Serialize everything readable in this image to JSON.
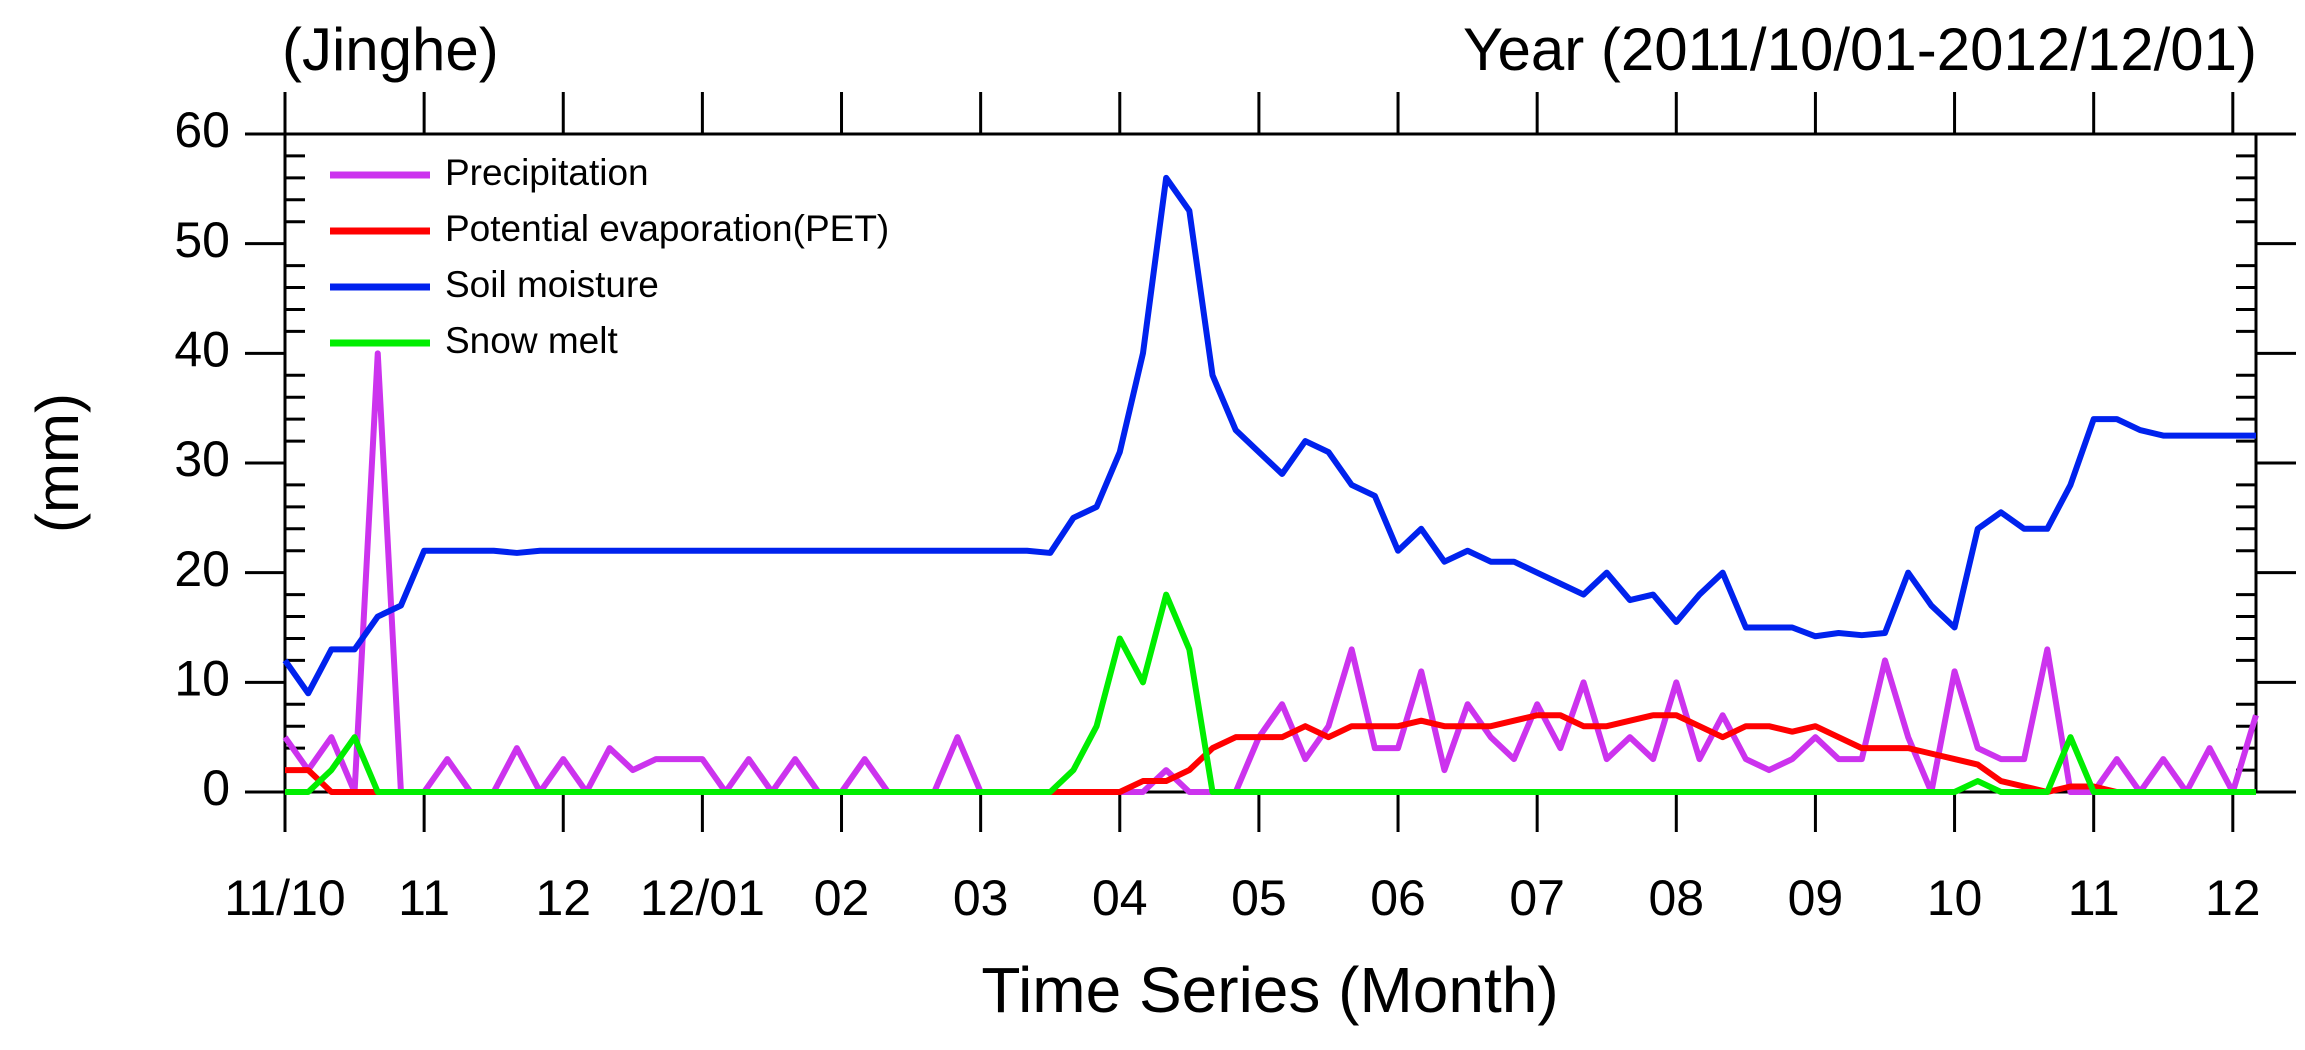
{
  "chart_data": {
    "type": "line",
    "title_left": "(Jinghe)",
    "title_right": "Year (2011/10/01-2012/12/01)",
    "xlabel": "Time Series (Month)",
    "ylabel": "(mm)",
    "categories": [
      "11/10",
      null,
      null,
      null,
      null,
      null,
      "11",
      null,
      null,
      null,
      null,
      null,
      "12",
      null,
      null,
      null,
      null,
      null,
      "12/01",
      null,
      null,
      null,
      null,
      null,
      "02",
      null,
      null,
      null,
      null,
      null,
      "03",
      null,
      null,
      null,
      null,
      null,
      "04",
      null,
      null,
      null,
      null,
      null,
      "05",
      null,
      null,
      null,
      null,
      null,
      "06",
      null,
      null,
      null,
      null,
      null,
      "07",
      null,
      null,
      null,
      null,
      null,
      "08",
      null,
      null,
      null,
      null,
      null,
      "09",
      null,
      null,
      null,
      null,
      null,
      "10",
      null,
      null,
      null,
      null,
      null,
      "11",
      null,
      null,
      null,
      null,
      null,
      "12",
      null
    ],
    "series": [
      {
        "name": "Precipitation",
        "color": "#cc33ee",
        "values": [
          5,
          2,
          5,
          0,
          40,
          0,
          0,
          3,
          0,
          0,
          4,
          0,
          3,
          0,
          4,
          2,
          3,
          3,
          3,
          0,
          3,
          0,
          3,
          0,
          0,
          3,
          0,
          0,
          0,
          5,
          0,
          0,
          0,
          0,
          0,
          0,
          0,
          0,
          2,
          0,
          0,
          0,
          5,
          8,
          3,
          6,
          13,
          4,
          4,
          11,
          2,
          8,
          5,
          3,
          8,
          4,
          10,
          3,
          5,
          3,
          10,
          3,
          7,
          3,
          2,
          3,
          5,
          3,
          3,
          12,
          5,
          0,
          11,
          4,
          3,
          3,
          13,
          0,
          0,
          3,
          0,
          3,
          0,
          4,
          0,
          7
        ]
      },
      {
        "name": "Potential evaporation(PET)",
        "color": "#ff0000",
        "values": [
          2,
          2,
          0,
          0,
          0,
          0,
          0,
          0,
          0,
          0,
          0,
          0,
          0,
          0,
          0,
          0,
          0,
          0,
          0,
          0,
          0,
          0,
          0,
          0,
          0,
          0,
          0,
          0,
          0,
          0,
          0,
          0,
          0,
          0,
          0,
          0,
          0,
          1,
          1,
          2,
          4,
          5,
          5,
          5,
          6,
          5,
          6,
          6,
          6,
          6.5,
          6,
          6,
          6,
          6.5,
          7,
          7,
          6,
          6,
          6.5,
          7,
          7,
          6,
          5,
          6,
          6,
          5.5,
          6,
          5,
          4,
          4,
          4,
          3.5,
          3,
          2.5,
          1,
          0.5,
          0,
          0.5,
          0.5,
          0,
          0,
          0,
          0,
          0,
          0,
          0
        ]
      },
      {
        "name": "Soil moisture",
        "color": "#0022ee",
        "values": [
          12,
          9,
          13,
          13,
          16,
          17,
          22,
          22,
          22,
          22,
          21.8,
          22,
          22,
          22,
          22,
          22,
          22,
          22,
          22,
          22,
          22,
          22,
          22,
          22,
          22,
          22,
          22,
          22,
          22,
          22,
          22,
          22,
          22,
          21.8,
          25,
          26,
          31,
          40,
          56,
          53,
          38,
          33,
          31,
          29,
          32,
          31,
          28,
          27,
          22,
          24,
          21,
          22,
          21,
          21,
          20,
          19,
          18,
          20,
          17.5,
          18,
          15.5,
          18,
          20,
          15,
          15,
          15,
          14.2,
          14.5,
          14.3,
          14.5,
          20,
          17,
          15,
          24,
          25.5,
          24,
          24,
          28,
          34,
          34,
          33,
          32.5,
          32.5,
          32.5,
          32.5,
          32.5
        ]
      },
      {
        "name": "Snow melt",
        "color": "#00ee00",
        "values": [
          0,
          0,
          2,
          5,
          0,
          0,
          0,
          0,
          0,
          0,
          0,
          0,
          0,
          0,
          0,
          0,
          0,
          0,
          0,
          0,
          0,
          0,
          0,
          0,
          0,
          0,
          0,
          0,
          0,
          0,
          0,
          0,
          0,
          0,
          2,
          6,
          14,
          10,
          18,
          13,
          0,
          0,
          0,
          0,
          0,
          0,
          0,
          0,
          0,
          0,
          0,
          0,
          0,
          0,
          0,
          0,
          0,
          0,
          0,
          0,
          0,
          0,
          0,
          0,
          0,
          0,
          0,
          0,
          0,
          0,
          0,
          0,
          0,
          1,
          0,
          0,
          0,
          5,
          0,
          0,
          0,
          0,
          0,
          0,
          0,
          0
        ]
      }
    ],
    "ylim": [
      0,
      60
    ],
    "yticks": [
      0,
      10,
      20,
      30,
      40,
      50,
      60
    ],
    "legend": "upper-left"
  }
}
